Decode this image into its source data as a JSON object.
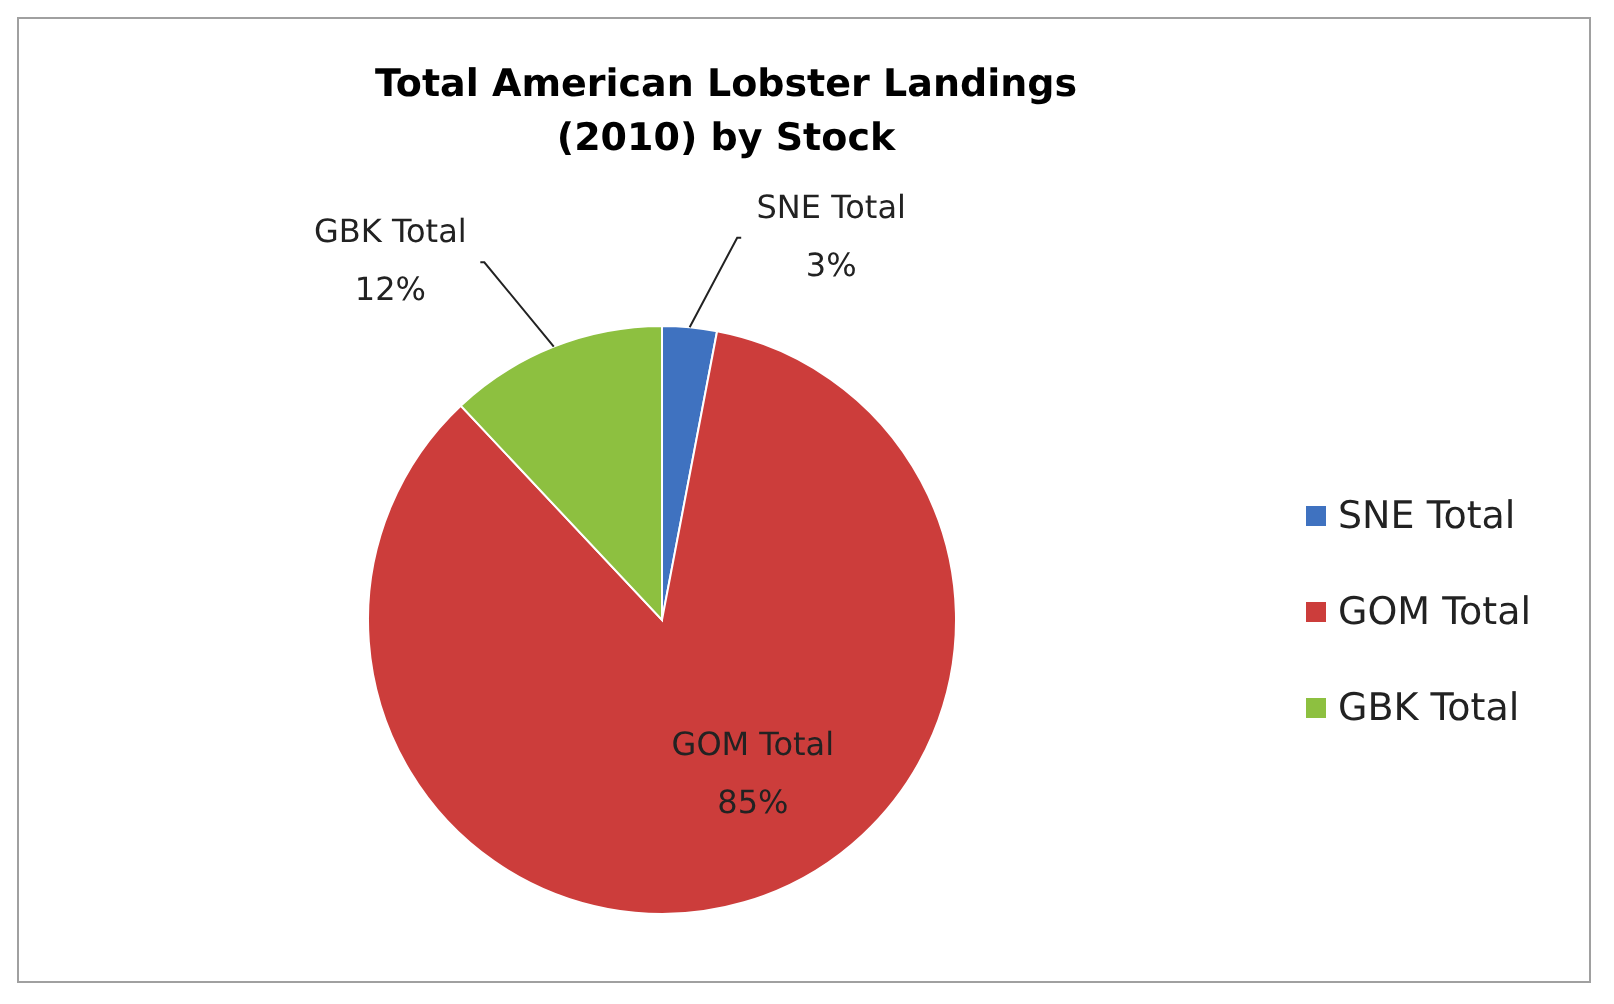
{
  "chart_data": {
    "type": "pie",
    "title": "Total American Lobster Landings\n(2010) by Stock",
    "categories": [
      "SNE Total",
      "GOM Total",
      "GBK Total"
    ],
    "values": [
      3,
      85,
      12
    ],
    "colors": [
      "#3f72c0",
      "#cc3d3b",
      "#8dc040"
    ],
    "value_labels": [
      "3%",
      "85%",
      "12%"
    ],
    "legend": "right"
  }
}
